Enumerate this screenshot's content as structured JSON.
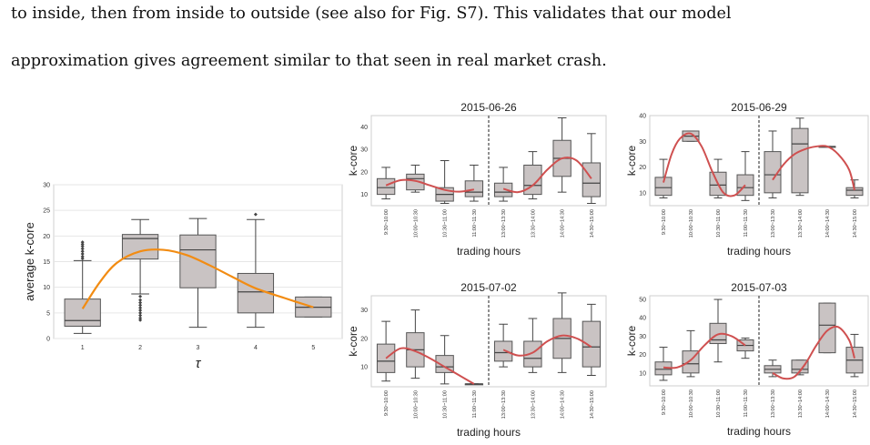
{
  "paragraph": {
    "line1": "to inside, then from inside to outside (see also for Fig. S7). This validates that our model",
    "line2": "approximation gives agreement similar to that seen in real market crash."
  },
  "chart_data": [
    {
      "type": "box",
      "id": "main",
      "xlabel": "τ",
      "ylabel": "average k-core",
      "categories": [
        "1",
        "2",
        "3",
        "4",
        "5"
      ],
      "ylim": [
        0,
        30
      ],
      "yticks": [
        0,
        5,
        10,
        15,
        20,
        25,
        30
      ],
      "grid": true,
      "boxes": [
        {
          "min": 1,
          "q1": 2.4,
          "median": 3.5,
          "q3": 7.7,
          "max": 15.2,
          "outliers": [
            15.6,
            16.0,
            16.5,
            17.0,
            17.5,
            18.0,
            18.4,
            18.8
          ]
        },
        {
          "min": 8.7,
          "q1": 15.5,
          "median": 19.5,
          "q3": 20.3,
          "max": 23.2,
          "outliers": [
            3.6,
            4.0,
            4.5,
            5.0,
            5.5,
            6.0,
            6.5,
            7.0,
            7.5,
            8.2
          ]
        },
        {
          "min": 2.2,
          "q1": 9.9,
          "median": 17.3,
          "q3": 20.2,
          "max": 23.4,
          "outliers": []
        },
        {
          "min": 2.2,
          "q1": 5.0,
          "median": 9.1,
          "q3": 12.7,
          "max": 23.2,
          "outliers": [
            24.2
          ]
        },
        {
          "min": 4.2,
          "q1": 4.2,
          "median": 6.1,
          "q3": 8.1,
          "max": 8.1,
          "outliers": []
        }
      ],
      "trend": {
        "color": "#f28c13",
        "x": [
          1.0,
          1.3,
          1.6,
          2.0,
          2.4,
          2.8,
          3.2,
          3.6,
          4.0,
          4.5,
          5.0
        ],
        "y": [
          5.8,
          11.0,
          14.8,
          17.0,
          17.3,
          16.3,
          14.3,
          12.0,
          9.8,
          7.9,
          6.1
        ]
      }
    },
    {
      "type": "box",
      "id": "d0626",
      "title": "2015-06-26",
      "xlabel": "trading hours",
      "ylabel": "k-core",
      "categories": [
        "9:30~10:00",
        "10:00~10:30",
        "10:30~11:00",
        "11:00~11:30",
        "13:00~13:30",
        "13:30~14:00",
        "14:00~14:30",
        "14:30~15:00"
      ],
      "ylim": [
        5,
        45
      ],
      "yticks": [
        10,
        20,
        30,
        40
      ],
      "boxes": [
        {
          "min": 8,
          "q1": 10,
          "median": 13,
          "q3": 17,
          "max": 22
        },
        {
          "min": 11,
          "q1": 12,
          "median": 17,
          "q3": 19,
          "max": 23
        },
        {
          "min": 6,
          "q1": 7,
          "median": 10,
          "q3": 13,
          "max": 25
        },
        {
          "min": 7,
          "q1": 9,
          "median": 11,
          "q3": 16,
          "max": 23
        },
        {
          "min": 7,
          "q1": 9,
          "median": 11,
          "q3": 15,
          "max": 22
        },
        {
          "min": 8,
          "q1": 10,
          "median": 14,
          "q3": 23,
          "max": 29
        },
        {
          "min": 11,
          "q1": 18,
          "median": 26,
          "q3": 34,
          "max": 44
        },
        {
          "min": 6,
          "q1": 9,
          "median": 15,
          "q3": 24,
          "max": 37
        }
      ],
      "trend": {
        "color": "#cf5050",
        "segments": [
          {
            "x": [
              1.0,
              1.5,
              2.0,
              2.5,
              3.0,
              3.5,
              4.0
            ],
            "y": [
              14,
              16.3,
              16.0,
              14.0,
              12.0,
              11.2,
              12.2
            ]
          },
          {
            "x": [
              5.0,
              5.5,
              6.0,
              6.5,
              7.0,
              7.5,
              8.0
            ],
            "y": [
              12.5,
              11.0,
              14.0,
              21.0,
              26.0,
              25.0,
              17.0
            ]
          }
        ]
      }
    },
    {
      "type": "box",
      "id": "d0629",
      "title": "2015-06-29",
      "xlabel": "trading hours",
      "ylabel": "k-core",
      "categories": [
        "9:30~10:00",
        "10:00~10:30",
        "10:30~11:00",
        "11:00~11:30",
        "13:00~13:30",
        "13:30~14:00",
        "14:00~14:30",
        "14:30~15:00"
      ],
      "ylim": [
        5,
        40
      ],
      "yticks": [
        10,
        20,
        30,
        40
      ],
      "boxes": [
        {
          "min": 8,
          "q1": 9,
          "median": 12,
          "q3": 16,
          "max": 23
        },
        {
          "min": 30,
          "q1": 30,
          "median": 32,
          "q3": 34,
          "max": 34
        },
        {
          "min": 8,
          "q1": 9,
          "median": 13,
          "q3": 18,
          "max": 23
        },
        {
          "min": 7,
          "q1": 9,
          "median": 12,
          "q3": 17,
          "max": 26
        },
        {
          "min": 8,
          "q1": 10,
          "median": 17,
          "q3": 26,
          "max": 34
        },
        {
          "min": 9,
          "q1": 10,
          "median": 29,
          "q3": 35,
          "max": 39
        },
        {
          "min": 28,
          "q1": 28,
          "median": 28,
          "q3": 28,
          "max": 28
        },
        {
          "min": 8,
          "q1": 9,
          "median": 11,
          "q3": 12,
          "max": 15
        }
      ],
      "trend": {
        "color": "#cf5050",
        "segments": [
          {
            "x": [
              1.0,
              1.3,
              1.6,
              2.0,
              2.4,
              2.8,
              3.2,
              3.6,
              4.0
            ],
            "y": [
              14,
              25,
              31,
              33,
              28,
              18,
              10,
              9,
              13
            ]
          },
          {
            "x": [
              5.0,
              5.4,
              5.8,
              6.2,
              6.6,
              7.0,
              7.4,
              7.8,
              8.0
            ],
            "y": [
              15,
              21,
              25,
              27,
              28,
              28,
              25,
              19,
              11
            ]
          }
        ]
      }
    },
    {
      "type": "box",
      "id": "d0702",
      "title": "2015-07-02",
      "xlabel": "trading hours",
      "ylabel": "k-core",
      "categories": [
        "9:30~10:00",
        "10:00~10:30",
        "10:30~11:00",
        "11:00~11:30",
        "13:00~13:30",
        "13:30~14:00",
        "14:00~14:30",
        "14:30~15:00"
      ],
      "ylim": [
        3,
        35
      ],
      "yticks": [
        10,
        20,
        30
      ],
      "boxes": [
        {
          "min": 5,
          "q1": 8,
          "median": 12,
          "q3": 18,
          "max": 26
        },
        {
          "min": 6,
          "q1": 10,
          "median": 16,
          "q3": 22,
          "max": 30
        },
        {
          "min": 4,
          "q1": 8,
          "median": 10,
          "q3": 14,
          "max": 21
        },
        {
          "min": 4,
          "q1": 4,
          "median": 4,
          "q3": 4,
          "max": 4
        },
        {
          "min": 10,
          "q1": 12,
          "median": 15,
          "q3": 19,
          "max": 25
        },
        {
          "min": 8,
          "q1": 10,
          "median": 13,
          "q3": 19,
          "max": 27
        },
        {
          "min": 8,
          "q1": 13,
          "median": 20,
          "q3": 27,
          "max": 36
        },
        {
          "min": 7,
          "q1": 10,
          "median": 17,
          "q3": 26,
          "max": 32
        }
      ],
      "trend": {
        "color": "#cf5050",
        "segments": [
          {
            "x": [
              1.0,
              1.5,
              2.0,
              2.5,
              3.0,
              3.5,
              4.0
            ],
            "y": [
              13,
              16.5,
              15.5,
              13,
              10,
              7,
              4
            ]
          },
          {
            "x": [
              5.0,
              5.5,
              6.0,
              6.5,
              7.0,
              7.5,
              8.0
            ],
            "y": [
              16,
              14,
              15,
              19,
              21,
              20,
              17
            ]
          }
        ]
      }
    },
    {
      "type": "box",
      "id": "d0703",
      "title": "2015-07-03",
      "xlabel": "trading hours",
      "ylabel": "k-core",
      "categories": [
        "9:30~10:00",
        "10:00~10:30",
        "10:30~11:00",
        "11:00~11:30",
        "13:00~13:30",
        "13:30~14:00",
        "14:00~14:30",
        "14:30~15:00"
      ],
      "ylim": [
        3,
        52
      ],
      "yticks": [
        10,
        20,
        30,
        40,
        50
      ],
      "boxes": [
        {
          "min": 6,
          "q1": 9,
          "median": 12,
          "q3": 16,
          "max": 24
        },
        {
          "min": 8,
          "q1": 10,
          "median": 15,
          "q3": 22,
          "max": 33
        },
        {
          "min": 16,
          "q1": 26,
          "median": 28,
          "q3": 37,
          "max": 50
        },
        {
          "min": 18,
          "q1": 22,
          "median": 25,
          "q3": 28,
          "max": 29
        },
        {
          "min": 8,
          "q1": 10,
          "median": 12,
          "q3": 14,
          "max": 17
        },
        {
          "min": 9,
          "q1": 10,
          "median": 12,
          "q3": 17,
          "max": 17
        },
        {
          "min": 21,
          "q1": 21,
          "median": 36,
          "q3": 48,
          "max": 48
        },
        {
          "min": 8,
          "q1": 10,
          "median": 17,
          "q3": 24,
          "max": 31
        }
      ],
      "trend": {
        "color": "#cf5050",
        "segments": [
          {
            "x": [
              1.0,
              1.5,
              2.0,
              2.5,
              3.0,
              3.5,
              4.0
            ],
            "y": [
              13,
              13,
              17,
              25,
              31,
              30,
              25
            ]
          },
          {
            "x": [
              5.0,
              5.4,
              5.8,
              6.2,
              6.6,
              7.0,
              7.4,
              7.8,
              8.0
            ],
            "y": [
              10,
              7,
              8,
              15,
              25,
              33,
              35,
              28,
              18
            ]
          }
        ]
      }
    }
  ]
}
